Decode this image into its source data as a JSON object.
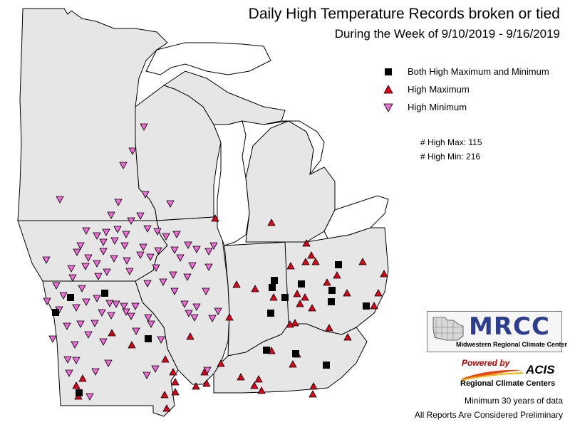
{
  "title": "Daily High Temperature Records broken or tied",
  "subtitle": "During the Week of 9/10/2019 - 9/16/2019",
  "legend": [
    {
      "symbol": "square-icon",
      "color": "#000000",
      "label": "Both High Maximum and Minimum"
    },
    {
      "symbol": "triangle-up-icon",
      "color": "#e0001a",
      "label": "High Maximum"
    },
    {
      "symbol": "triangle-down-icon",
      "color": "#f06ad8",
      "label": "High Minimum"
    }
  ],
  "counts": {
    "high_max": "# High Max: 115",
    "high_min": "# High Min: 216"
  },
  "logo": {
    "name": "MRCC",
    "subtitle": "Midwestern Regional Climate Center"
  },
  "powered_by": "Powered by",
  "acis": "ACIS",
  "rcc": "Regional Climate Centers",
  "notes": [
    "Minimum 30 years of data",
    "All Reports Are Considered Preliminary"
  ],
  "colors": {
    "land": "#e6e6e6",
    "water": "#ffffff",
    "border": "#000000"
  }
}
